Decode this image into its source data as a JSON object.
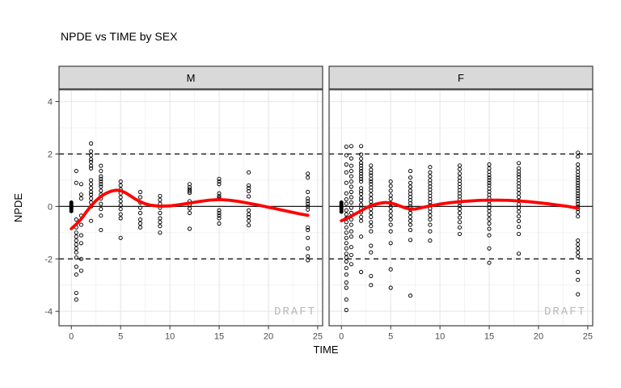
{
  "chart_data": {
    "type": "scatter",
    "title": "NPDE vs TIME by SEX",
    "xlabel": "TIME",
    "ylabel": "NPDE",
    "facet_by": "SEX",
    "facets": [
      "M",
      "F"
    ],
    "x_ticks": [
      0,
      5,
      10,
      15,
      20,
      25
    ],
    "x_minor_ticks": [
      2.5,
      7.5,
      12.5,
      17.5,
      22.5
    ],
    "y_ticks": [
      -4,
      -2,
      0,
      2,
      4
    ],
    "y_minor_ticks": [
      -3,
      -1,
      1,
      3
    ],
    "xlim": [
      -1.25,
      25.5
    ],
    "ylim": [
      -4.55,
      4.45
    ],
    "reference_lines": {
      "solid_y": 0,
      "dashed_y": [
        -2,
        2
      ]
    },
    "watermark": "DRAFT",
    "colors": {
      "smooth": "#FF0000",
      "points": "#000000",
      "grid_major": "#E4E4E4",
      "grid_minor": "#F1F1F1",
      "strip_bg": "#D9D9D9",
      "panel_border": "#3C3C3C",
      "zero_line": "#1A1A1A",
      "dashed_line": "#000000",
      "axis_text": "#4D4D4D",
      "watermark_color": "#B8B8B8"
    },
    "panels": [
      {
        "facet": "M",
        "baseline_cluster_time": 0,
        "baseline_cluster": [
          0.15,
          0.08,
          0.02,
          -0.04,
          -0.1,
          -0.18
        ],
        "points_by_time": {
          "0.5": [
            1.35,
            0.9,
            -0.5,
            -0.8,
            -1.0,
            -1.15,
            -1.3,
            -1.45,
            -1.6,
            -1.75,
            -1.95,
            -2.3,
            -2.6,
            -3.3,
            -3.55
          ],
          "1": [
            0.85,
            0.45,
            0.3,
            -0.35,
            -0.7,
            -1.1,
            -1.4,
            -2.0,
            -2.45
          ],
          "2": [
            2.4,
            2.1,
            1.95,
            1.8,
            1.7,
            1.55,
            1.45,
            1.0,
            0.85,
            0.7,
            0.55,
            0.45,
            0.3,
            0.15,
            0.0,
            -0.55
          ],
          "3": [
            1.55,
            1.35,
            1.15,
            1.05,
            0.95,
            0.85,
            0.75,
            0.6,
            0.45,
            0.3,
            0.1,
            -0.1,
            -0.35,
            -0.9
          ],
          "5": [
            0.95,
            0.8,
            0.65,
            0.5,
            0.35,
            0.2,
            0.05,
            -0.1,
            -0.3,
            -0.45,
            -1.2
          ],
          "7": [
            0.55,
            0.35,
            0.15,
            -0.05,
            -0.25,
            -0.5,
            -0.65,
            -0.8
          ],
          "9": [
            0.4,
            0.25,
            0.1,
            -0.05,
            -0.25,
            -0.45,
            -0.6,
            -0.75,
            -1.0
          ],
          "12": [
            0.85,
            0.73,
            0.65,
            0.58,
            0.52,
            0.2,
            0.07,
            -0.08,
            -0.25,
            -0.85
          ],
          "15": [
            1.05,
            0.95,
            0.85,
            0.5,
            0.4,
            0.33,
            -0.15,
            -0.25,
            -0.35,
            -0.45,
            -0.65
          ],
          "18": [
            1.3,
            0.8,
            0.7,
            0.58,
            0.38,
            -0.15,
            -0.3,
            -0.4,
            -0.55,
            -0.72
          ],
          "24": [
            1.25,
            1.1,
            0.55,
            0.3,
            0.2,
            0.1,
            0.0,
            -0.12,
            -0.8,
            -0.9,
            -1.2,
            -1.6,
            -1.9,
            -2.05
          ]
        },
        "smooth": [
          [
            0,
            -0.85
          ],
          [
            0.5,
            -0.68
          ],
          [
            1,
            -0.48
          ],
          [
            1.5,
            -0.22
          ],
          [
            2,
            0.02
          ],
          [
            2.5,
            0.22
          ],
          [
            3,
            0.38
          ],
          [
            3.5,
            0.5
          ],
          [
            4,
            0.58
          ],
          [
            4.5,
            0.62
          ],
          [
            5,
            0.6
          ],
          [
            5.5,
            0.52
          ],
          [
            6,
            0.4
          ],
          [
            6.5,
            0.28
          ],
          [
            7,
            0.18
          ],
          [
            7.5,
            0.1
          ],
          [
            8,
            0.05
          ],
          [
            9,
            0.01
          ],
          [
            10,
            0.02
          ],
          [
            11,
            0.07
          ],
          [
            12,
            0.13
          ],
          [
            13,
            0.19
          ],
          [
            14,
            0.24
          ],
          [
            15,
            0.26
          ],
          [
            16,
            0.24
          ],
          [
            17,
            0.19
          ],
          [
            18,
            0.12
          ],
          [
            19,
            0.05
          ],
          [
            20,
            -0.03
          ],
          [
            21,
            -0.11
          ],
          [
            22,
            -0.19
          ],
          [
            23,
            -0.27
          ],
          [
            24,
            -0.34
          ]
        ]
      },
      {
        "facet": "F",
        "baseline_cluster_time": 0,
        "baseline_cluster": [
          0.15,
          0.08,
          0.02,
          -0.05,
          -0.12,
          -0.2
        ],
        "points_by_time": {
          "0.5": [
            2.28,
            1.95,
            1.6,
            1.3,
            0.9,
            0.5,
            0.27,
            0.1,
            -0.15,
            -0.3,
            -0.45,
            -0.6,
            -0.8,
            -1.0,
            -1.2,
            -1.4,
            -1.6,
            -1.8,
            -1.95,
            -2.1,
            -2.35,
            -2.6,
            -2.9,
            -3.1,
            -3.55,
            -3.95
          ],
          "1": [
            2.3,
            1.83,
            1.55,
            1.35,
            1.15,
            0.95,
            0.75,
            0.55,
            0.35,
            0.15,
            -0.05,
            -0.25,
            -0.5,
            -0.7,
            -0.95,
            -1.15,
            -1.55,
            -1.85,
            -2.2
          ],
          "2": [
            2.3,
            1.98,
            1.82,
            1.66,
            1.56,
            1.45,
            1.35,
            1.25,
            1.15,
            1.05,
            0.95,
            0.7,
            0.58,
            0.48,
            0.33,
            0.23,
            0.07,
            -0.08,
            -0.23,
            -0.4,
            -0.55,
            -1.15,
            -2.5
          ],
          "3": [
            1.56,
            1.4,
            1.28,
            1.18,
            1.05,
            0.95,
            0.85,
            0.72,
            0.6,
            0.45,
            0.3,
            0.18,
            0.05,
            -0.1,
            -0.25,
            -0.4,
            -0.6,
            -0.75,
            -0.95,
            -1.5,
            -1.75,
            -2.65,
            -3.0
          ],
          "5": [
            0.95,
            0.78,
            0.6,
            0.42,
            0.28,
            0.12,
            -0.02,
            -0.18,
            -0.35,
            -0.5,
            -0.7,
            -0.95,
            -1.4,
            -2.4,
            -3.1
          ],
          "7": [
            1.35,
            1.1,
            0.9,
            0.75,
            0.6,
            0.48,
            0.36,
            0.24,
            0.12,
            0.0,
            -0.12,
            -0.25,
            -0.4,
            -0.55,
            -0.7,
            -0.9,
            -1.28,
            -3.4
          ],
          "9": [
            1.5,
            1.3,
            1.15,
            1.0,
            0.88,
            0.76,
            0.64,
            0.52,
            0.4,
            0.28,
            0.16,
            0.05,
            -0.08,
            -0.2,
            -0.35,
            -0.5,
            -0.7,
            -0.95,
            -1.3
          ],
          "12": [
            1.56,
            1.42,
            1.25,
            1.1,
            0.98,
            0.86,
            0.74,
            0.62,
            0.5,
            0.38,
            0.26,
            0.14,
            0.02,
            -0.1,
            -0.25,
            -0.42,
            -0.6,
            -0.8,
            -1.05
          ],
          "15": [
            1.6,
            1.45,
            1.32,
            1.2,
            1.1,
            1.0,
            0.9,
            0.8,
            0.68,
            0.56,
            0.44,
            0.32,
            0.2,
            0.08,
            -0.05,
            -0.18,
            -0.32,
            -0.48,
            -0.65,
            -0.85,
            -1.1,
            -1.6,
            -2.15
          ],
          "18": [
            1.65,
            1.45,
            1.33,
            1.22,
            1.12,
            1.0,
            0.88,
            0.76,
            0.64,
            0.5,
            0.36,
            0.22,
            0.08,
            -0.06,
            -0.2,
            -0.38,
            -0.56,
            -0.78,
            -1.05,
            -1.8
          ],
          "24": [
            2.05,
            1.9,
            1.6,
            1.45,
            1.32,
            1.2,
            1.1,
            1.0,
            0.9,
            0.8,
            0.7,
            0.6,
            0.5,
            0.4,
            0.3,
            0.2,
            0.1,
            0.0,
            -0.1,
            -0.22,
            -0.38,
            -1.3,
            -1.45,
            -1.6,
            -1.75,
            -1.9,
            -2.5,
            -2.8,
            -3.35
          ]
        },
        "smooth": [
          [
            0,
            -0.55
          ],
          [
            0.5,
            -0.46
          ],
          [
            1,
            -0.37
          ],
          [
            1.5,
            -0.27
          ],
          [
            2,
            -0.16
          ],
          [
            2.5,
            -0.06
          ],
          [
            3,
            0.03
          ],
          [
            3.5,
            0.09
          ],
          [
            4,
            0.13
          ],
          [
            4.5,
            0.15
          ],
          [
            5,
            0.13
          ],
          [
            5.5,
            0.08
          ],
          [
            6,
            0.01
          ],
          [
            6.5,
            -0.06
          ],
          [
            7,
            -0.1
          ],
          [
            7.5,
            -0.1
          ],
          [
            8,
            -0.06
          ],
          [
            9,
            0.02
          ],
          [
            10,
            0.09
          ],
          [
            11,
            0.14
          ],
          [
            12,
            0.18
          ],
          [
            13,
            0.21
          ],
          [
            14,
            0.23
          ],
          [
            15,
            0.24
          ],
          [
            16,
            0.24
          ],
          [
            17,
            0.23
          ],
          [
            18,
            0.21
          ],
          [
            19,
            0.18
          ],
          [
            20,
            0.14
          ],
          [
            21,
            0.1
          ],
          [
            22,
            0.05
          ],
          [
            23,
            0.0
          ],
          [
            24,
            -0.07
          ]
        ]
      }
    ]
  }
}
